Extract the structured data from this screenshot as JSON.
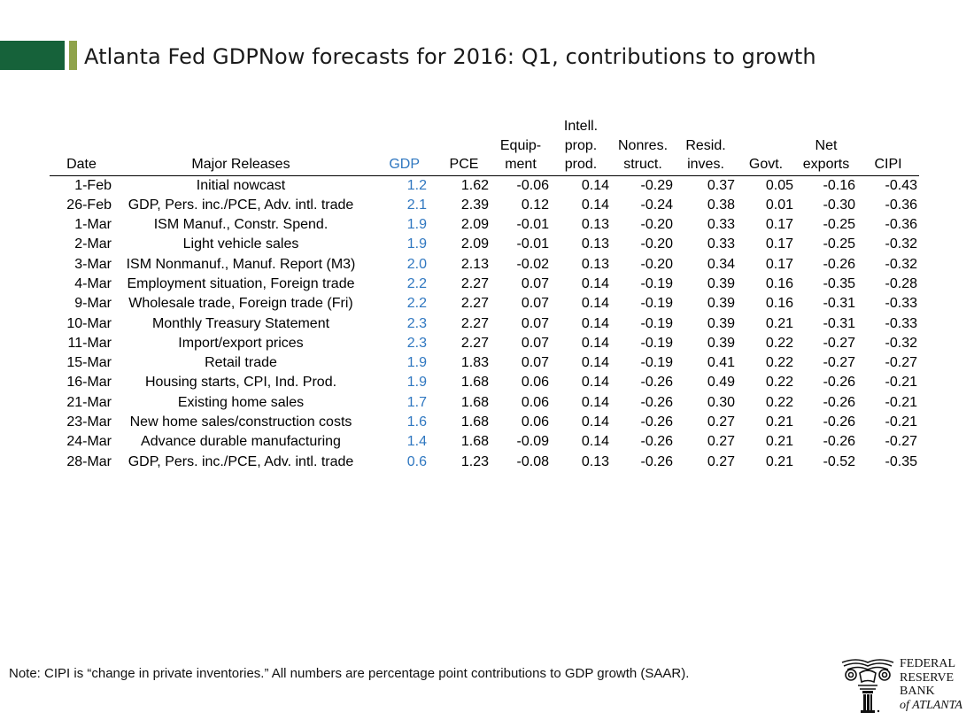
{
  "title": "Atlanta Fed GDPNow forecasts for 2016: Q1, contributions to growth",
  "colors": {
    "title_bar_dark": "#16623a",
    "title_bar_light": "#8fa34b",
    "gdp_column": "#2f77c0"
  },
  "table": {
    "headers": [
      [
        "Date"
      ],
      [
        "Major Releases"
      ],
      [
        "GDP"
      ],
      [
        "PCE"
      ],
      [
        "Equip-",
        "ment"
      ],
      [
        "Intell.",
        "prop.",
        "prod."
      ],
      [
        "Nonres.",
        "struct."
      ],
      [
        "Resid.",
        "inves."
      ],
      [
        "Govt."
      ],
      [
        "Net",
        "exports"
      ],
      [
        "CIPI"
      ]
    ],
    "rows": [
      [
        "1-Feb",
        "Initial nowcast",
        "1.2",
        "1.62",
        "-0.06",
        "0.14",
        "-0.29",
        "0.37",
        "0.05",
        "-0.16",
        "-0.43"
      ],
      [
        "26-Feb",
        "GDP, Pers. inc./PCE, Adv. intl. trade",
        "2.1",
        "2.39",
        "0.12",
        "0.14",
        "-0.24",
        "0.38",
        "0.01",
        "-0.30",
        "-0.36"
      ],
      [
        "1-Mar",
        "ISM Manuf., Constr. Spend.",
        "1.9",
        "2.09",
        "-0.01",
        "0.13",
        "-0.20",
        "0.33",
        "0.17",
        "-0.25",
        "-0.36"
      ],
      [
        "2-Mar",
        "Light vehicle sales",
        "1.9",
        "2.09",
        "-0.01",
        "0.13",
        "-0.20",
        "0.33",
        "0.17",
        "-0.25",
        "-0.32"
      ],
      [
        "3-Mar",
        "ISM Nonmanuf., Manuf. Report (M3)",
        "2.0",
        "2.13",
        "-0.02",
        "0.13",
        "-0.20",
        "0.34",
        "0.17",
        "-0.26",
        "-0.32"
      ],
      [
        "4-Mar",
        "Employment situation, Foreign trade",
        "2.2",
        "2.27",
        "0.07",
        "0.14",
        "-0.19",
        "0.39",
        "0.16",
        "-0.35",
        "-0.28"
      ],
      [
        "9-Mar",
        "Wholesale trade, Foreign trade (Fri)",
        "2.2",
        "2.27",
        "0.07",
        "0.14",
        "-0.19",
        "0.39",
        "0.16",
        "-0.31",
        "-0.33"
      ],
      [
        "10-Mar",
        "Monthly Treasury Statement",
        "2.3",
        "2.27",
        "0.07",
        "0.14",
        "-0.19",
        "0.39",
        "0.21",
        "-0.31",
        "-0.33"
      ],
      [
        "11-Mar",
        "Import/export prices",
        "2.3",
        "2.27",
        "0.07",
        "0.14",
        "-0.19",
        "0.39",
        "0.22",
        "-0.27",
        "-0.32"
      ],
      [
        "15-Mar",
        "Retail trade",
        "1.9",
        "1.83",
        "0.07",
        "0.14",
        "-0.19",
        "0.41",
        "0.22",
        "-0.27",
        "-0.27"
      ],
      [
        "16-Mar",
        "Housing starts, CPI, Ind. Prod.",
        "1.9",
        "1.68",
        "0.06",
        "0.14",
        "-0.26",
        "0.49",
        "0.22",
        "-0.26",
        "-0.21"
      ],
      [
        "21-Mar",
        "Existing home sales",
        "1.7",
        "1.68",
        "0.06",
        "0.14",
        "-0.26",
        "0.30",
        "0.22",
        "-0.26",
        "-0.21"
      ],
      [
        "23-Mar",
        "New home sales/construction costs",
        "1.6",
        "1.68",
        "0.06",
        "0.14",
        "-0.26",
        "0.27",
        "0.21",
        "-0.26",
        "-0.21"
      ],
      [
        "24-Mar",
        "Advance durable manufacturing",
        "1.4",
        "1.68",
        "-0.09",
        "0.14",
        "-0.26",
        "0.27",
        "0.21",
        "-0.26",
        "-0.27"
      ],
      [
        "28-Mar",
        "GDP, Pers. inc./PCE, Adv. intl. trade",
        "0.6",
        "1.23",
        "-0.08",
        "0.13",
        "-0.26",
        "0.27",
        "0.21",
        "-0.52",
        "-0.35"
      ]
    ]
  },
  "note": "Note:  CIPI is “change in private inventories.”  All numbers are percentage point contributions to GDP growth (SAAR).",
  "logo": {
    "lines": [
      "FEDERAL",
      "RESERVE",
      "BANK",
      "of ATLANTA"
    ],
    "icon": "eagle-column-logo-icon"
  }
}
